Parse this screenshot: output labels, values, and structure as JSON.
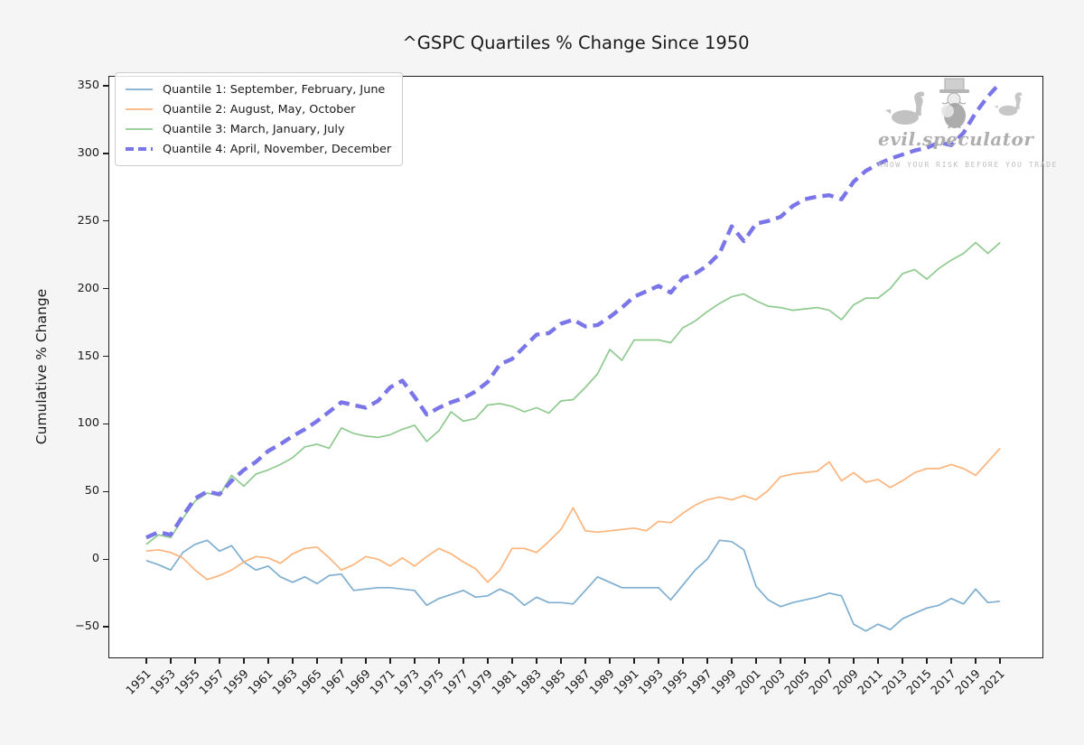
{
  "figure": {
    "title": "^GSPC Quartiles % Change Since 1950",
    "ylabel": "Cumulative % Change",
    "background_color": "#f5f5f5",
    "plot_background_color": "#ffffff"
  },
  "watermark": {
    "brand": "evil.speculator",
    "tagline": "KNOW YOUR RISK BEFORE YOU TRADE",
    "color": "#b0b0b0",
    "icons": [
      "swan-icon",
      "top-hat-speculator-mascot-icon",
      "swan-icon"
    ]
  },
  "chart_data": {
    "type": "line",
    "title": "^GSPC Quartiles % Change Since 1950",
    "xlabel": "",
    "ylabel": "Cumulative % Change",
    "grid": false,
    "legend_position": "upper left",
    "x_tick_rotation": 45,
    "xlim": [
      1947.9,
      2024.55
    ],
    "ylim": [
      -73.2,
      357.2
    ],
    "x_ticks": [
      1951,
      1953,
      1955,
      1957,
      1959,
      1961,
      1963,
      1965,
      1967,
      1969,
      1971,
      1973,
      1975,
      1977,
      1979,
      1981,
      1983,
      1985,
      1987,
      1989,
      1991,
      1993,
      1995,
      1997,
      1999,
      2001,
      2003,
      2005,
      2007,
      2009,
      2011,
      2013,
      2015,
      2017,
      2019,
      2021
    ],
    "y_ticks": [
      -50,
      0,
      50,
      100,
      150,
      200,
      250,
      300,
      350
    ],
    "y_tick_labels": [
      "−50",
      "0",
      "50",
      "100",
      "150",
      "200",
      "250",
      "300",
      "350"
    ],
    "x": [
      1951,
      1952,
      1953,
      1954,
      1955,
      1956,
      1957,
      1958,
      1959,
      1960,
      1961,
      1962,
      1963,
      1964,
      1965,
      1966,
      1967,
      1968,
      1969,
      1970,
      1971,
      1972,
      1973,
      1974,
      1975,
      1976,
      1977,
      1978,
      1979,
      1980,
      1981,
      1982,
      1983,
      1984,
      1985,
      1986,
      1987,
      1988,
      1989,
      1990,
      1991,
      1992,
      1993,
      1994,
      1995,
      1996,
      1997,
      1998,
      1999,
      2000,
      2001,
      2002,
      2003,
      2004,
      2005,
      2006,
      2007,
      2008,
      2009,
      2010,
      2011,
      2012,
      2013,
      2014,
      2015,
      2016,
      2017,
      2018,
      2019,
      2020,
      2021
    ],
    "series": [
      {
        "name": "Quantile 1: September, February, June",
        "color": "#7eaed0",
        "line_width": 1.7,
        "dashed": false,
        "values": [
          -1,
          -4,
          -8,
          5,
          11,
          14,
          6,
          10,
          -2,
          -8,
          -5,
          -13,
          -17,
          -13,
          -18,
          -12,
          -11,
          -23,
          -22,
          -21,
          -21,
          -22,
          -23,
          -34,
          -29,
          -26,
          -23,
          -28,
          -27,
          -22,
          -26,
          -34,
          -28,
          -32,
          -32,
          -33,
          -23,
          -13,
          -17,
          -21,
          -21,
          -21,
          -21,
          -30,
          -19,
          -8,
          0,
          14,
          13,
          7,
          -20,
          -30,
          -35,
          -32,
          -30,
          -28,
          -25,
          -27,
          -48,
          -53,
          -48,
          -52,
          -44,
          -40,
          -36,
          -34,
          -29,
          -33,
          -22,
          -32,
          -31
        ]
      },
      {
        "name": "Quantile 2: August, May, October",
        "color": "#fdb47b",
        "line_width": 1.7,
        "dashed": false,
        "values": [
          6,
          7,
          5,
          1,
          -8,
          -15,
          -12,
          -8,
          -2,
          2,
          1,
          -3,
          4,
          8,
          9,
          1,
          -8,
          -4,
          2,
          0,
          -5,
          1,
          -5,
          2,
          8,
          4,
          -2,
          -7,
          -17,
          -8,
          8,
          8,
          5,
          13,
          22,
          38,
          21,
          20,
          21,
          22,
          23,
          21,
          28,
          27,
          34,
          40,
          44,
          46,
          44,
          47,
          44,
          51,
          61,
          63,
          64,
          65,
          72,
          58,
          64,
          57,
          59,
          53,
          58,
          64,
          67,
          67,
          70,
          67,
          62,
          72,
          82
        ]
      },
      {
        "name": "Quantile 3: March, January, July",
        "color": "#8fca8f",
        "line_width": 1.7,
        "dashed": false,
        "values": [
          11,
          18,
          16,
          30,
          43,
          49,
          47,
          62,
          54,
          63,
          66,
          70,
          75,
          83,
          85,
          82,
          97,
          93,
          91,
          90,
          92,
          96,
          99,
          87,
          95,
          109,
          102,
          104,
          114,
          115,
          113,
          109,
          112,
          108,
          117,
          118,
          127,
          137,
          155,
          147,
          162,
          162,
          162,
          160,
          171,
          176,
          183,
          189,
          194,
          196,
          191,
          187,
          186,
          184,
          185,
          186,
          184,
          177,
          188,
          193,
          193,
          200,
          211,
          214,
          207,
          215,
          221,
          226,
          234,
          226,
          234
        ]
      },
      {
        "name": "Quantile 4: April, November, December",
        "color": "#7a76e9",
        "line_width": 4.4,
        "dashed": true,
        "values": [
          16,
          20,
          18,
          32,
          45,
          50,
          48,
          58,
          66,
          72,
          80,
          85,
          91,
          96,
          102,
          109,
          116,
          114,
          112,
          117,
          127,
          132,
          120,
          107,
          112,
          116,
          119,
          124,
          131,
          144,
          148,
          157,
          166,
          167,
          174,
          177,
          172,
          173,
          179,
          186,
          194,
          198,
          202,
          197,
          208,
          211,
          217,
          226,
          246,
          235,
          248,
          250,
          253,
          261,
          266,
          268,
          269,
          266,
          279,
          287,
          292,
          296,
          299,
          302,
          304,
          308,
          306,
          315,
          330,
          342,
          352
        ]
      }
    ]
  }
}
